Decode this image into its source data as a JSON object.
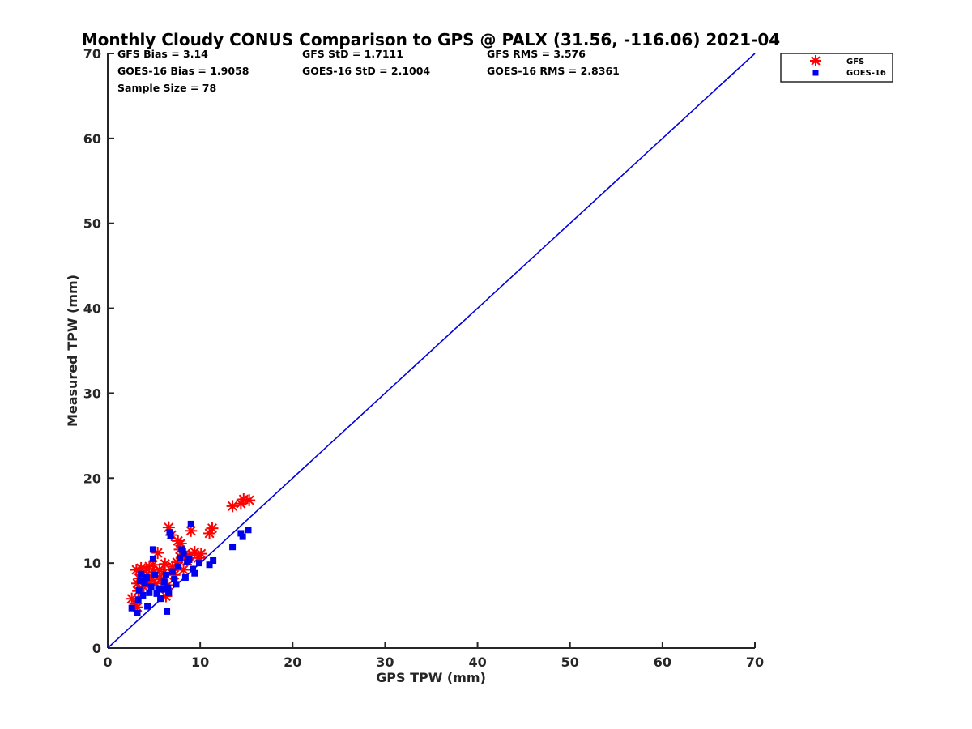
{
  "chart_data": {
    "type": "scatter",
    "title": "Monthly Cloudy CONUS Comparison to GPS @ PALX (31.56, -116.06) 2021-04",
    "xlabel": "GPS TPW (mm)",
    "ylabel": "Measured TPW (mm)",
    "xlim": [
      0,
      70
    ],
    "ylim": [
      0,
      70
    ],
    "xticks": [
      "0",
      "10",
      "20",
      "30",
      "40",
      "50",
      "60",
      "70"
    ],
    "yticks": [
      "0",
      "10",
      "20",
      "30",
      "40",
      "50",
      "60",
      "70"
    ],
    "grid": false,
    "legend_position": "top-right (outside plot)",
    "stats": {
      "gfs_bias": "GFS Bias = 3.14",
      "goes_bias": "GOES-16 Bias = 1.9058",
      "sample_size": "Sample Size = 78",
      "gfs_std": "GFS StD = 1.7111",
      "goes_std": "GOES-16 StD = 2.1004",
      "gfs_rms": "GFS RMS = 3.576",
      "goes_rms": "GOES-16 RMS = 2.8361"
    },
    "reference_line": {
      "x": [
        0,
        70
      ],
      "y": [
        0,
        70
      ],
      "color": "#0000dd"
    },
    "series": [
      {
        "name": "GFS",
        "marker": "asterisk",
        "color": "#ff0000",
        "points": [
          [
            2.6,
            5.8
          ],
          [
            3.0,
            5.2
          ],
          [
            3.2,
            4.8
          ],
          [
            3.3,
            6.7
          ],
          [
            3.2,
            7.6
          ],
          [
            3.4,
            8.2
          ],
          [
            3.1,
            9.2
          ],
          [
            3.6,
            9.4
          ],
          [
            3.8,
            8.6
          ],
          [
            3.9,
            7.2
          ],
          [
            4.2,
            9.3
          ],
          [
            4.4,
            7.8
          ],
          [
            4.5,
            9.6
          ],
          [
            4.7,
            8.4
          ],
          [
            4.9,
            9.8
          ],
          [
            5.0,
            8.9
          ],
          [
            5.2,
            7.6
          ],
          [
            5.4,
            11.2
          ],
          [
            5.6,
            9.2
          ],
          [
            5.8,
            8.1
          ],
          [
            6.0,
            8.8
          ],
          [
            6.2,
            9.9
          ],
          [
            6.3,
            6.1
          ],
          [
            6.5,
            7.4
          ],
          [
            6.6,
            14.2
          ],
          [
            6.9,
            13.3
          ],
          [
            7.0,
            9.6
          ],
          [
            7.2,
            8.6
          ],
          [
            7.5,
            10.1
          ],
          [
            7.6,
            12.6
          ],
          [
            7.8,
            11.6
          ],
          [
            7.9,
            12.3
          ],
          [
            8.0,
            10.6
          ],
          [
            8.2,
            9.2
          ],
          [
            8.4,
            11.1
          ],
          [
            8.6,
            10.3
          ],
          [
            8.8,
            10.9
          ],
          [
            9.0,
            13.8
          ],
          [
            9.4,
            11.3
          ],
          [
            9.8,
            10.6
          ],
          [
            10.1,
            11.1
          ],
          [
            11.0,
            13.5
          ],
          [
            11.3,
            14.1
          ],
          [
            13.5,
            16.7
          ],
          [
            14.4,
            17.0
          ],
          [
            14.7,
            17.5
          ],
          [
            15.3,
            17.4
          ]
        ]
      },
      {
        "name": "GOES-16",
        "marker": "square",
        "color": "#0000ee",
        "points": [
          [
            2.6,
            4.7
          ],
          [
            3.2,
            4.1
          ],
          [
            3.3,
            5.7
          ],
          [
            3.4,
            6.8
          ],
          [
            3.5,
            7.9
          ],
          [
            3.6,
            8.7
          ],
          [
            3.8,
            6.2
          ],
          [
            4.0,
            7.6
          ],
          [
            4.2,
            8.3
          ],
          [
            4.3,
            4.9
          ],
          [
            4.5,
            6.5
          ],
          [
            4.7,
            7.2
          ],
          [
            4.9,
            10.5
          ],
          [
            4.9,
            11.6
          ],
          [
            5.1,
            8.6
          ],
          [
            5.3,
            6.4
          ],
          [
            5.5,
            7.0
          ],
          [
            5.7,
            5.8
          ],
          [
            5.9,
            6.9
          ],
          [
            6.1,
            7.8
          ],
          [
            6.3,
            8.6
          ],
          [
            6.4,
            4.3
          ],
          [
            6.5,
            7.1
          ],
          [
            6.6,
            6.5
          ],
          [
            6.7,
            13.6
          ],
          [
            6.8,
            13.2
          ],
          [
            7.0,
            9.0
          ],
          [
            7.2,
            8.1
          ],
          [
            7.4,
            7.5
          ],
          [
            7.6,
            9.6
          ],
          [
            7.8,
            10.6
          ],
          [
            8.0,
            11.6
          ],
          [
            8.2,
            11.1
          ],
          [
            8.4,
            8.3
          ],
          [
            8.6,
            10.1
          ],
          [
            8.8,
            10.4
          ],
          [
            9.0,
            14.6
          ],
          [
            9.2,
            9.3
          ],
          [
            9.4,
            8.8
          ],
          [
            9.9,
            10.0
          ],
          [
            11.0,
            9.8
          ],
          [
            11.4,
            10.3
          ],
          [
            13.5,
            11.9
          ],
          [
            14.4,
            13.5
          ],
          [
            14.6,
            13.1
          ],
          [
            15.2,
            13.9
          ]
        ]
      }
    ]
  }
}
